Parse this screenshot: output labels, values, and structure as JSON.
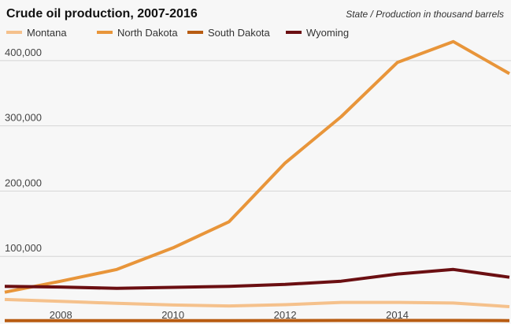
{
  "chart_data": {
    "type": "line",
    "title": "Crude oil production, 2007-2016",
    "subtitle": "State / Production in thousand barrels",
    "xlabel": "",
    "ylabel": "",
    "x": [
      2007,
      2008,
      2009,
      2010,
      2011,
      2012,
      2013,
      2014,
      2015,
      2016
    ],
    "xlim": [
      2007,
      2016
    ],
    "ylim": [
      0,
      430000
    ],
    "x_ticks": [
      2008,
      2010,
      2012,
      2014
    ],
    "x_tick_labels": [
      "2008",
      "2010",
      "2012",
      "2014"
    ],
    "y_ticks": [
      100000,
      200000,
      300000,
      400000
    ],
    "y_tick_labels": [
      "100,000",
      "200,000",
      "300,000",
      "400,000"
    ],
    "grid": "horizontal",
    "legend_position": "top",
    "series": [
      {
        "name": "Montana",
        "color": "#f5c18c",
        "values": [
          34000,
          31000,
          28000,
          25500,
          24000,
          26000,
          29500,
          29500,
          28500,
          23000
        ]
      },
      {
        "name": "North Dakota",
        "color": "#e8953a",
        "values": [
          45000,
          62000,
          80000,
          113000,
          153000,
          243000,
          314000,
          397000,
          429000,
          380000
        ]
      },
      {
        "name": "South Dakota",
        "color": "#b85c12",
        "values": [
          1600,
          1500,
          1500,
          1600,
          1500,
          1700,
          1800,
          1800,
          1800,
          1600
        ]
      },
      {
        "name": "Wyoming",
        "color": "#6b0f12",
        "values": [
          54000,
          53000,
          51000,
          52500,
          54000,
          57000,
          62000,
          73000,
          80000,
          68000
        ]
      }
    ]
  }
}
